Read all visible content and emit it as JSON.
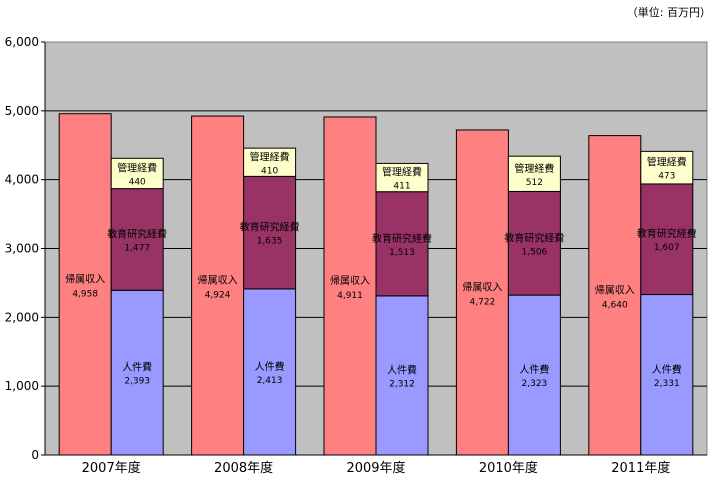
{
  "unit_label": "（単位: 百万円）",
  "chart_data": {
    "type": "bar",
    "categories": [
      "2007年度",
      "2008年度",
      "2009年度",
      "2010年度",
      "2011年度"
    ],
    "ylim": [
      0,
      6000
    ],
    "yticks": [
      "0",
      "1,000",
      "2,000",
      "3,000",
      "4,000",
      "5,000",
      "6,000"
    ],
    "grid": true,
    "plot_background": "#c0c0c0",
    "series": [
      {
        "name": "帰属収入",
        "stack": "revenue",
        "color": "#ff8080",
        "values": [
          4958,
          4924,
          4911,
          4722,
          4640
        ],
        "labels": [
          "4,958",
          "4,924",
          "4,911",
          "4,722",
          "4,640"
        ]
      },
      {
        "name": "人件費",
        "stack": "expense",
        "color": "#9999ff",
        "values": [
          2393,
          2413,
          2312,
          2323,
          2331
        ],
        "labels": [
          "2,393",
          "2,413",
          "2,312",
          "2,323",
          "2,331"
        ]
      },
      {
        "name": "教育研究経費",
        "stack": "expense",
        "color": "#993366",
        "values": [
          1477,
          1635,
          1513,
          1506,
          1607
        ],
        "labels": [
          "1,477",
          "1,635",
          "1,513",
          "1,506",
          "1,607"
        ]
      },
      {
        "name": "管理経費",
        "stack": "expense",
        "color": "#ffffcc",
        "values": [
          440,
          410,
          411,
          512,
          473
        ],
        "labels": [
          "440",
          "410",
          "411",
          "512",
          "473"
        ]
      }
    ]
  }
}
